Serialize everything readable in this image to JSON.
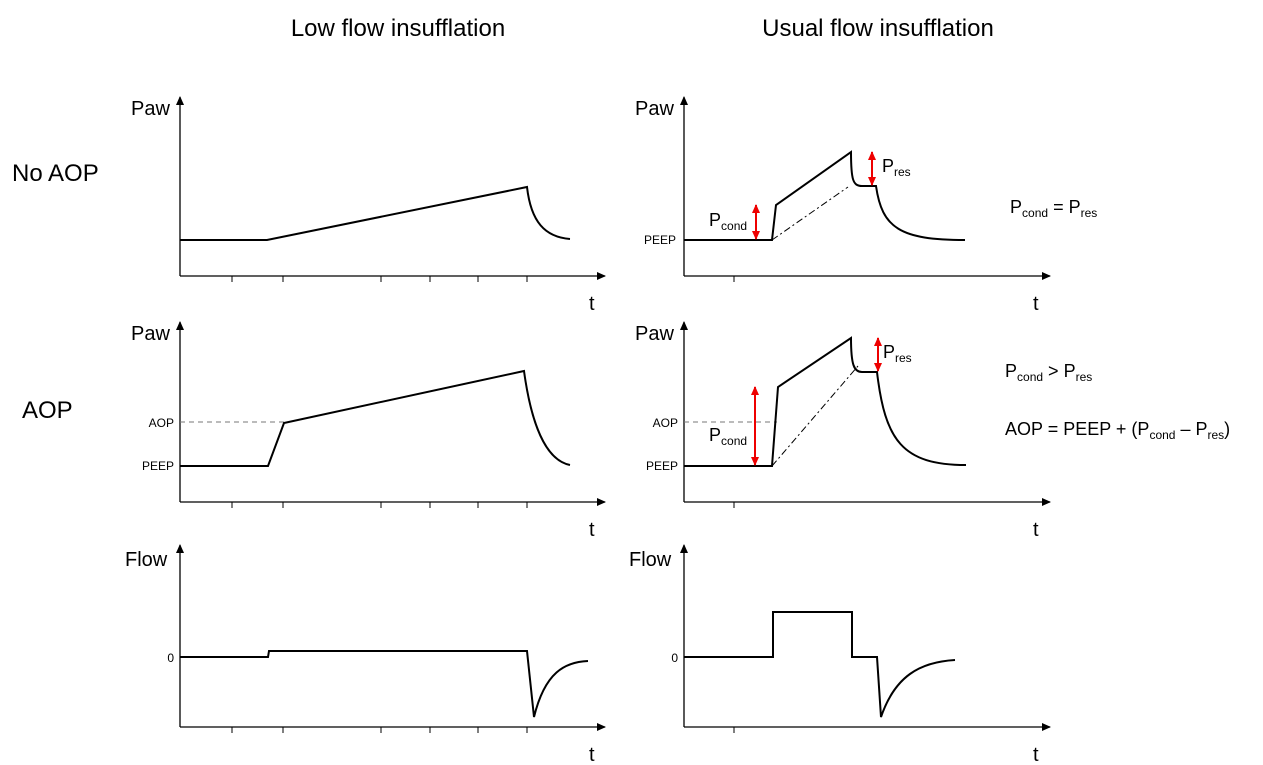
{
  "columns": [
    "Low flow insufflation",
    "Usual flow insufflation"
  ],
  "rows": [
    "No AOP",
    "AOP"
  ],
  "axes": {
    "paw": "Paw",
    "flow": "Flow",
    "time": "t"
  },
  "levels": {
    "peep": "PEEP",
    "aop": "AOP",
    "zero": "0"
  },
  "symbols": {
    "p": "P",
    "cond": "cond",
    "res": "res"
  },
  "equations": {
    "equal": " = ",
    "greater": " > ",
    "aop_start": "AOP = PEEP + (",
    "minus": " – ",
    "close": ")"
  }
}
